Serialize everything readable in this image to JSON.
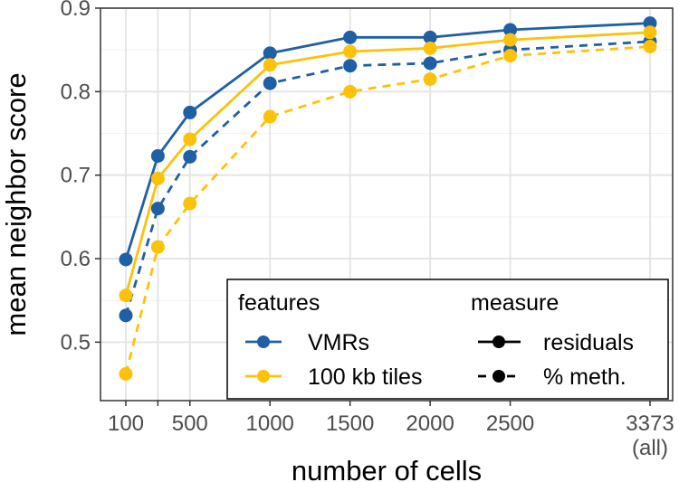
{
  "chart_data": {
    "type": "line",
    "xlabel": "number of cells",
    "ylabel": "mean neighbor score",
    "xlim": [
      0,
      3373
    ],
    "ylim": [
      0.43,
      0.9
    ],
    "grid": true,
    "x": [
      100,
      300,
      500,
      1000,
      1500,
      2000,
      2500,
      3373
    ],
    "x_ticks": [
      {
        "value": 100,
        "label": "100",
        "sub": ""
      },
      {
        "value": 300,
        "label": "",
        "sub": ""
      },
      {
        "value": 500,
        "label": "500",
        "sub": ""
      },
      {
        "value": 1000,
        "label": "1000",
        "sub": ""
      },
      {
        "value": 1500,
        "label": "1500",
        "sub": ""
      },
      {
        "value": 2000,
        "label": "2000",
        "sub": ""
      },
      {
        "value": 2500,
        "label": "2500",
        "sub": ""
      },
      {
        "value": 3373,
        "label": "3373",
        "sub": "(all)"
      }
    ],
    "y_ticks": [
      {
        "value": 0.5,
        "label": "0.5"
      },
      {
        "value": 0.6,
        "label": "0.6"
      },
      {
        "value": 0.7,
        "label": "0.7"
      },
      {
        "value": 0.8,
        "label": "0.8"
      },
      {
        "value": 0.9,
        "label": "0.9"
      }
    ],
    "series": [
      {
        "feature": "VMRs",
        "measure": "residuals",
        "color": "#1f5fa6",
        "dashed": false,
        "values": [
          0.599,
          0.723,
          0.775,
          0.846,
          0.865,
          0.865,
          0.874,
          0.882
        ]
      },
      {
        "feature": "VMRs",
        "measure": "% meth.",
        "color": "#1f5fa6",
        "dashed": true,
        "values": [
          0.532,
          0.66,
          0.722,
          0.81,
          0.831,
          0.834,
          0.85,
          0.86
        ]
      },
      {
        "feature": "100 kb tiles",
        "measure": "residuals",
        "color": "#fcc20a",
        "dashed": false,
        "values": [
          0.556,
          0.696,
          0.743,
          0.832,
          0.848,
          0.852,
          0.862,
          0.871
        ]
      },
      {
        "feature": "100 kb tiles",
        "measure": "% meth.",
        "color": "#fcc20a",
        "dashed": true,
        "values": [
          0.462,
          0.614,
          0.666,
          0.77,
          0.8,
          0.815,
          0.843,
          0.854
        ]
      }
    ],
    "legend": {
      "position": "bottom-right",
      "features_title": "features",
      "features": [
        {
          "label": "VMRs",
          "color": "#1f5fa6"
        },
        {
          "label": "100 kb tiles",
          "color": "#fcc20a"
        }
      ],
      "measure_title": "measure",
      "measures": [
        {
          "label": "residuals",
          "dashed": false
        },
        {
          "label": "% meth.",
          "dashed": true
        }
      ]
    }
  }
}
